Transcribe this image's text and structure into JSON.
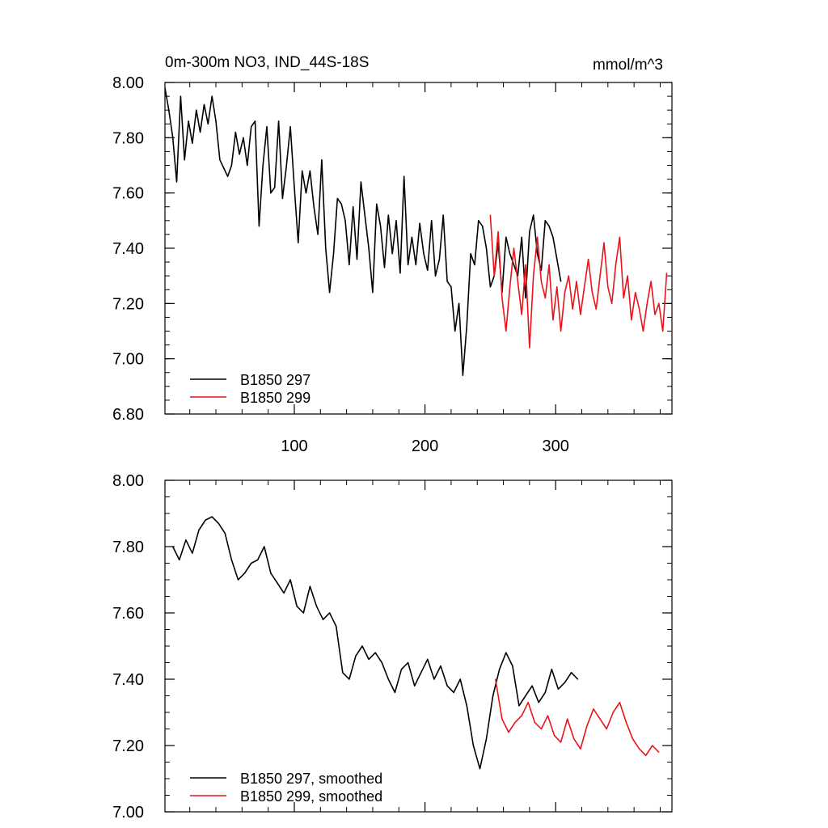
{
  "chart_data": [
    {
      "type": "line",
      "title": "0m-300m NO3, IND_44S-18S",
      "units": "mmol/m^3",
      "xlabel": "",
      "ylabel": "",
      "xlim": [
        1,
        389
      ],
      "ylim": [
        6.8,
        8.0
      ],
      "x_ticks": [
        100,
        200,
        300
      ],
      "x_tick_labels": [
        "100",
        "200",
        "300"
      ],
      "y_ticks": [
        6.8,
        7.0,
        7.2,
        7.4,
        7.6,
        7.8,
        8.0
      ],
      "y_tick_labels": [
        "6.80",
        "7.00",
        "7.20",
        "7.40",
        "7.60",
        "7.80",
        "8.00"
      ],
      "grid": false,
      "legend_position": "bottom-left",
      "series": [
        {
          "name": "B1850 297",
          "color": "#000000",
          "x_start": 1,
          "x_step": 3,
          "values": [
            7.98,
            7.9,
            7.8,
            7.64,
            7.95,
            7.72,
            7.86,
            7.78,
            7.9,
            7.82,
            7.92,
            7.85,
            7.95,
            7.86,
            7.72,
            7.69,
            7.66,
            7.7,
            7.82,
            7.74,
            7.8,
            7.7,
            7.84,
            7.86,
            7.48,
            7.7,
            7.84,
            7.6,
            7.62,
            7.86,
            7.58,
            7.7,
            7.84,
            7.62,
            7.42,
            7.68,
            7.6,
            7.68,
            7.55,
            7.45,
            7.72,
            7.4,
            7.24,
            7.38,
            7.58,
            7.56,
            7.5,
            7.34,
            7.55,
            7.36,
            7.64,
            7.52,
            7.4,
            7.24,
            7.56,
            7.48,
            7.33,
            7.52,
            7.38,
            7.5,
            7.31,
            7.66,
            7.34,
            7.44,
            7.34,
            7.49,
            7.38,
            7.32,
            7.5,
            7.3,
            7.36,
            7.52,
            7.28,
            7.26,
            7.1,
            7.2,
            6.94,
            7.12,
            7.38,
            7.34,
            7.5,
            7.48,
            7.4,
            7.26,
            7.3,
            7.42,
            7.24,
            7.44,
            7.38,
            7.34,
            7.3,
            7.44,
            7.22,
            7.46,
            7.52,
            7.38,
            7.32,
            7.5,
            7.48,
            7.44,
            7.36,
            7.28
          ]
        },
        {
          "name": "B1850 299",
          "color": "#e8141a",
          "x_start": 250,
          "x_step": 3,
          "values": [
            7.52,
            7.3,
            7.46,
            7.22,
            7.1,
            7.26,
            7.4,
            7.28,
            7.16,
            7.34,
            7.04,
            7.3,
            7.44,
            7.28,
            7.22,
            7.34,
            7.14,
            7.26,
            7.1,
            7.24,
            7.3,
            7.18,
            7.28,
            7.16,
            7.26,
            7.36,
            7.24,
            7.18,
            7.3,
            7.42,
            7.26,
            7.2,
            7.34,
            7.44,
            7.22,
            7.3,
            7.14,
            7.24,
            7.18,
            7.1,
            7.2,
            7.28,
            7.16,
            7.2,
            7.1,
            7.31
          ]
        }
      ]
    },
    {
      "type": "line",
      "title": "",
      "xlabel": "",
      "ylabel": "",
      "xlim": [
        1,
        389
      ],
      "ylim": [
        7.0,
        8.0
      ],
      "x_ticks": [
        100,
        200,
        300
      ],
      "y_ticks": [
        7.0,
        7.2,
        7.4,
        7.6,
        7.8,
        8.0
      ],
      "y_tick_labels": [
        "7.00",
        "7.20",
        "7.40",
        "7.60",
        "7.80",
        "8.00"
      ],
      "grid": false,
      "legend_position": "bottom-left",
      "series": [
        {
          "name": "B1850 297, smoothed",
          "color": "#000000",
          "x_start": 7,
          "x_step": 5,
          "values": [
            7.8,
            7.76,
            7.82,
            7.78,
            7.85,
            7.88,
            7.89,
            7.87,
            7.84,
            7.76,
            7.7,
            7.72,
            7.75,
            7.76,
            7.8,
            7.72,
            7.69,
            7.66,
            7.7,
            7.62,
            7.6,
            7.68,
            7.62,
            7.58,
            7.6,
            7.56,
            7.42,
            7.4,
            7.47,
            7.5,
            7.46,
            7.48,
            7.45,
            7.4,
            7.36,
            7.43,
            7.45,
            7.38,
            7.42,
            7.46,
            7.4,
            7.44,
            7.38,
            7.36,
            7.4,
            7.32,
            7.2,
            7.13,
            7.22,
            7.35,
            7.43,
            7.48,
            7.44,
            7.32,
            7.35,
            7.38,
            7.33,
            7.36,
            7.43,
            7.37,
            7.39,
            7.42,
            7.4
          ]
        },
        {
          "name": "B1850 299, smoothed",
          "color": "#e8141a",
          "x_start": 254,
          "x_step": 5,
          "values": [
            7.4,
            7.28,
            7.24,
            7.27,
            7.29,
            7.33,
            7.27,
            7.25,
            7.29,
            7.23,
            7.21,
            7.28,
            7.22,
            7.19,
            7.26,
            7.31,
            7.28,
            7.25,
            7.3,
            7.33,
            7.27,
            7.22,
            7.19,
            7.17,
            7.2,
            7.18
          ]
        }
      ]
    }
  ]
}
